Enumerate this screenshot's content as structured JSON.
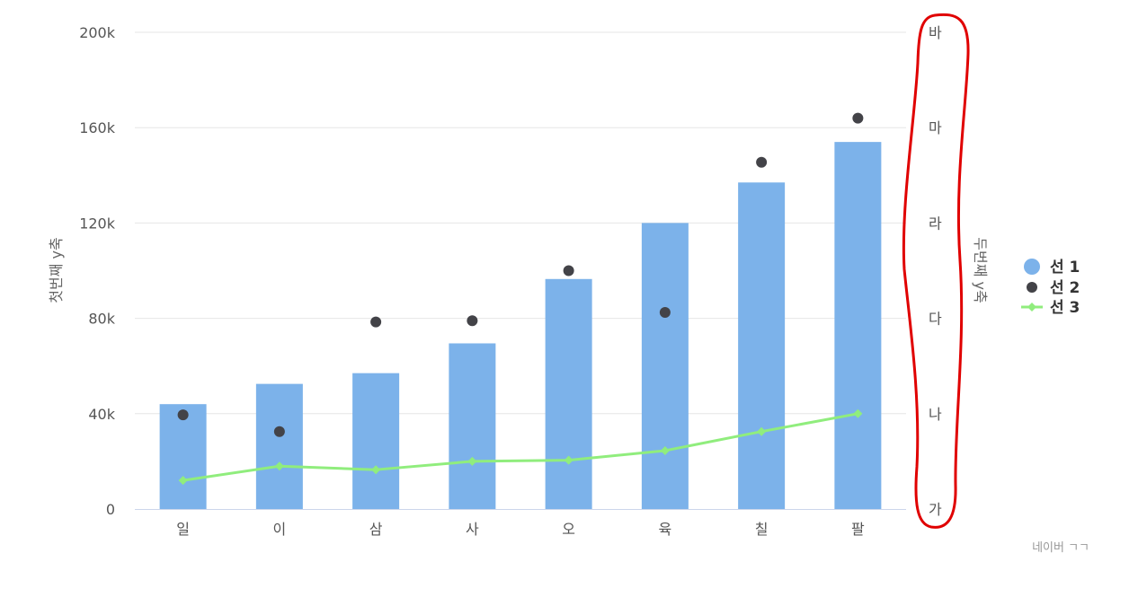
{
  "chart_data": {
    "type": "bar",
    "categories": [
      "일",
      "이",
      "삼",
      "사",
      "오",
      "육",
      "칠",
      "팔"
    ],
    "series": [
      {
        "name": "선 1",
        "type": "bar",
        "color": "#7cb2ea",
        "axis": "left",
        "values": [
          44000,
          52500,
          57000,
          69500,
          96500,
          120000,
          137000,
          154000
        ]
      },
      {
        "name": "선 2",
        "type": "scatter",
        "color": "#434348",
        "axis": "left",
        "values": [
          39500,
          32500,
          78500,
          79000,
          100000,
          82500,
          145500,
          164000
        ]
      },
      {
        "name": "선 3",
        "type": "line",
        "color": "#90ed7d",
        "axis": "left",
        "values": [
          12000,
          18000,
          16500,
          20000,
          20500,
          24500,
          32500,
          40000
        ]
      }
    ],
    "ylabel": "첫번째 y축",
    "y2label": "두번째 y축",
    "ylim": [
      0,
      200000
    ],
    "y_ticks": [
      "0",
      "40k",
      "80k",
      "120k",
      "160k",
      "200k"
    ],
    "y2_ticks": [
      "가",
      "나",
      "다",
      "라",
      "마",
      "바"
    ],
    "grid": true,
    "legend_position": "right"
  },
  "credit": "네이버 ㄱㄱ",
  "annotation": {
    "color": "#e00000",
    "shape": "ellipse-outline",
    "target": "secondary-y-axis"
  }
}
